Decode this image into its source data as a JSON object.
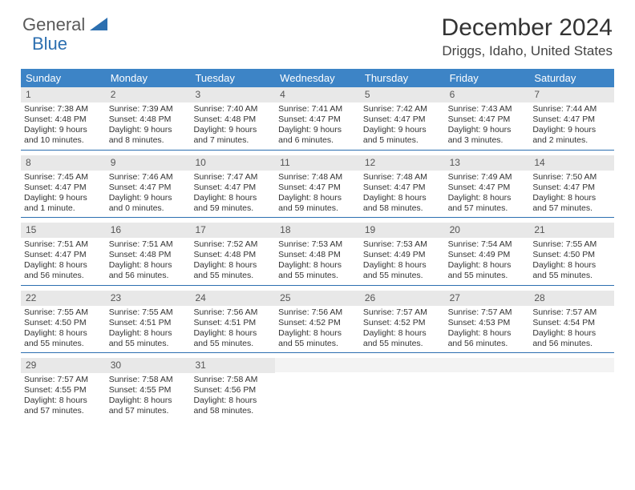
{
  "logo": {
    "general": "General",
    "blue": "Blue"
  },
  "title": "December 2024",
  "location": "Driggs, Idaho, United States",
  "colors": {
    "header_bg": "#3d84c6",
    "header_text": "#ffffff",
    "row_border": "#2c6fb0",
    "daynum_bg": "#e8e8e8",
    "logo_gray": "#5a5a5a",
    "logo_blue": "#2c6fb0"
  },
  "days_of_week": [
    "Sunday",
    "Monday",
    "Tuesday",
    "Wednesday",
    "Thursday",
    "Friday",
    "Saturday"
  ],
  "weeks": [
    [
      {
        "n": "1",
        "sr": "7:38 AM",
        "ss": "4:48 PM",
        "dl": "9 hours and 10 minutes."
      },
      {
        "n": "2",
        "sr": "7:39 AM",
        "ss": "4:48 PM",
        "dl": "9 hours and 8 minutes."
      },
      {
        "n": "3",
        "sr": "7:40 AM",
        "ss": "4:48 PM",
        "dl": "9 hours and 7 minutes."
      },
      {
        "n": "4",
        "sr": "7:41 AM",
        "ss": "4:47 PM",
        "dl": "9 hours and 6 minutes."
      },
      {
        "n": "5",
        "sr": "7:42 AM",
        "ss": "4:47 PM",
        "dl": "9 hours and 5 minutes."
      },
      {
        "n": "6",
        "sr": "7:43 AM",
        "ss": "4:47 PM",
        "dl": "9 hours and 3 minutes."
      },
      {
        "n": "7",
        "sr": "7:44 AM",
        "ss": "4:47 PM",
        "dl": "9 hours and 2 minutes."
      }
    ],
    [
      {
        "n": "8",
        "sr": "7:45 AM",
        "ss": "4:47 PM",
        "dl": "9 hours and 1 minute."
      },
      {
        "n": "9",
        "sr": "7:46 AM",
        "ss": "4:47 PM",
        "dl": "9 hours and 0 minutes."
      },
      {
        "n": "10",
        "sr": "7:47 AM",
        "ss": "4:47 PM",
        "dl": "8 hours and 59 minutes."
      },
      {
        "n": "11",
        "sr": "7:48 AM",
        "ss": "4:47 PM",
        "dl": "8 hours and 59 minutes."
      },
      {
        "n": "12",
        "sr": "7:48 AM",
        "ss": "4:47 PM",
        "dl": "8 hours and 58 minutes."
      },
      {
        "n": "13",
        "sr": "7:49 AM",
        "ss": "4:47 PM",
        "dl": "8 hours and 57 minutes."
      },
      {
        "n": "14",
        "sr": "7:50 AM",
        "ss": "4:47 PM",
        "dl": "8 hours and 57 minutes."
      }
    ],
    [
      {
        "n": "15",
        "sr": "7:51 AM",
        "ss": "4:47 PM",
        "dl": "8 hours and 56 minutes."
      },
      {
        "n": "16",
        "sr": "7:51 AM",
        "ss": "4:48 PM",
        "dl": "8 hours and 56 minutes."
      },
      {
        "n": "17",
        "sr": "7:52 AM",
        "ss": "4:48 PM",
        "dl": "8 hours and 55 minutes."
      },
      {
        "n": "18",
        "sr": "7:53 AM",
        "ss": "4:48 PM",
        "dl": "8 hours and 55 minutes."
      },
      {
        "n": "19",
        "sr": "7:53 AM",
        "ss": "4:49 PM",
        "dl": "8 hours and 55 minutes."
      },
      {
        "n": "20",
        "sr": "7:54 AM",
        "ss": "4:49 PM",
        "dl": "8 hours and 55 minutes."
      },
      {
        "n": "21",
        "sr": "7:55 AM",
        "ss": "4:50 PM",
        "dl": "8 hours and 55 minutes."
      }
    ],
    [
      {
        "n": "22",
        "sr": "7:55 AM",
        "ss": "4:50 PM",
        "dl": "8 hours and 55 minutes."
      },
      {
        "n": "23",
        "sr": "7:55 AM",
        "ss": "4:51 PM",
        "dl": "8 hours and 55 minutes."
      },
      {
        "n": "24",
        "sr": "7:56 AM",
        "ss": "4:51 PM",
        "dl": "8 hours and 55 minutes."
      },
      {
        "n": "25",
        "sr": "7:56 AM",
        "ss": "4:52 PM",
        "dl": "8 hours and 55 minutes."
      },
      {
        "n": "26",
        "sr": "7:57 AM",
        "ss": "4:52 PM",
        "dl": "8 hours and 55 minutes."
      },
      {
        "n": "27",
        "sr": "7:57 AM",
        "ss": "4:53 PM",
        "dl": "8 hours and 56 minutes."
      },
      {
        "n": "28",
        "sr": "7:57 AM",
        "ss": "4:54 PM",
        "dl": "8 hours and 56 minutes."
      }
    ],
    [
      {
        "n": "29",
        "sr": "7:57 AM",
        "ss": "4:55 PM",
        "dl": "8 hours and 57 minutes."
      },
      {
        "n": "30",
        "sr": "7:58 AM",
        "ss": "4:55 PM",
        "dl": "8 hours and 57 minutes."
      },
      {
        "n": "31",
        "sr": "7:58 AM",
        "ss": "4:56 PM",
        "dl": "8 hours and 58 minutes."
      },
      {
        "empty": true
      },
      {
        "empty": true
      },
      {
        "empty": true
      },
      {
        "empty": true
      }
    ]
  ],
  "labels": {
    "sunrise": "Sunrise:",
    "sunset": "Sunset:",
    "daylight": "Daylight:"
  }
}
